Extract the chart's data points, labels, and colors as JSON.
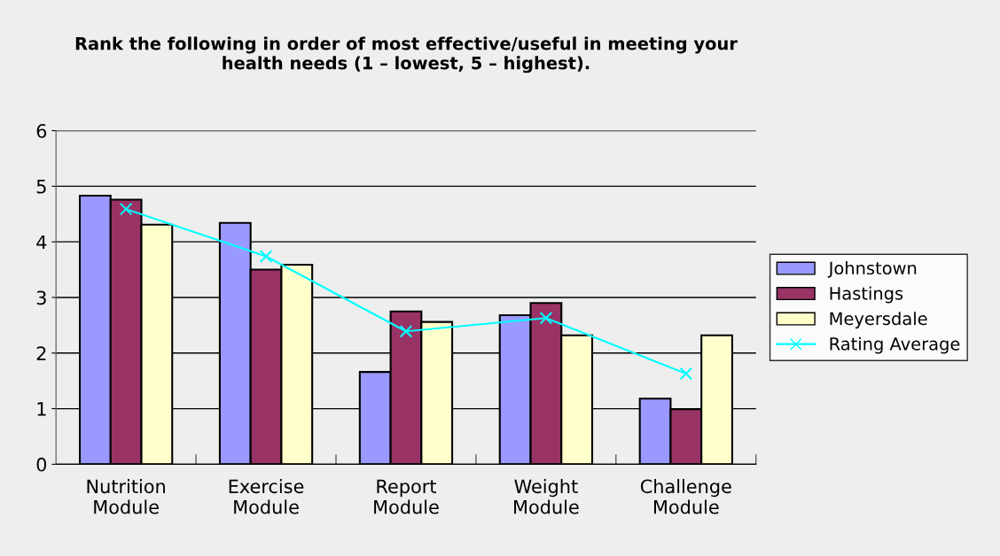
{
  "chart_data": {
    "type": "bar",
    "title": "Rank the following in order of most effective/useful in meeting your\nhealth needs (1 – lowest, 5 – highest).",
    "categories": [
      "Nutrition\nModule",
      "Exercise\nModule",
      "Report\nModule",
      "Weight\nModule",
      "Challenge\nModule"
    ],
    "series": [
      {
        "name": "Johnstown",
        "color": "#9999ff",
        "values": [
          4.83,
          4.34,
          1.66,
          2.68,
          1.18
        ]
      },
      {
        "name": "Hastings",
        "color": "#993366",
        "values": [
          4.76,
          3.5,
          2.75,
          2.9,
          0.99
        ]
      },
      {
        "name": "Meyersdale",
        "color": "#ffffcc",
        "values": [
          4.31,
          3.59,
          2.56,
          2.32,
          2.32
        ]
      },
      {
        "name": "Rating Average",
        "type": "line",
        "color": "#00ffff",
        "marker": "cross",
        "values": [
          4.59,
          3.74,
          2.39,
          2.63,
          1.63
        ]
      }
    ],
    "ylim": [
      0,
      6
    ],
    "yticks": [
      0,
      1,
      2,
      3,
      4,
      5,
      6
    ],
    "grid": "y",
    "legend": "right"
  }
}
